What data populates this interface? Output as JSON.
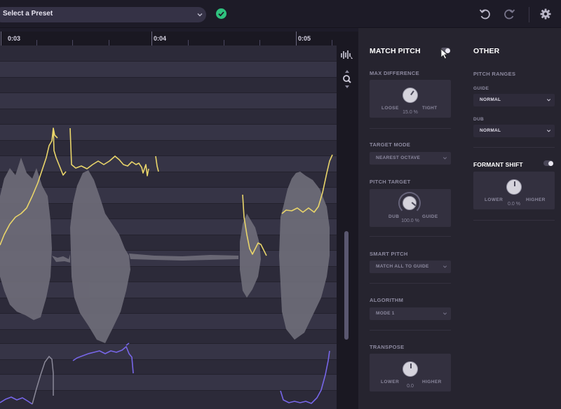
{
  "toolbar": {
    "preset_label": "Select a Preset",
    "icons": [
      "chevron-down-icon",
      "check-circle-icon",
      "undo-icon",
      "redo-icon",
      "gear-icon"
    ],
    "accent_color": "#2fc27e"
  },
  "timeline": {
    "ticks": [
      "0:03",
      "0:04",
      "0:05"
    ]
  },
  "tools": {
    "icons": [
      "waveform-select-icon",
      "zoom-icon"
    ]
  },
  "colors": {
    "guide_pitch": "#e9d56a",
    "dub_pitch": "#7766e8",
    "waveform": "#6e6c78"
  },
  "match_pitch": {
    "title": "MATCH PITCH",
    "max_difference": {
      "label": "MAX DIFFERENCE",
      "left": "LOOSE",
      "right": "TIGHT",
      "value": "15.0 %"
    },
    "target_mode": {
      "label": "TARGET MODE",
      "value": "NEAREST OCTAVE"
    },
    "pitch_target": {
      "label": "PITCH TARGET",
      "left": "DUB",
      "right": "GUIDE",
      "value": "100.0 %"
    },
    "smart_pitch": {
      "label": "SMART PITCH",
      "value": "MATCH ALL TO GUIDE"
    },
    "algorithm": {
      "label": "ALGORITHM",
      "value": "MODE 1"
    },
    "transpose": {
      "label": "TRANSPOSE",
      "left": "LOWER",
      "right": "HIGHER",
      "value": "0.0"
    }
  },
  "other": {
    "title": "OTHER",
    "pitch_ranges_label": "PITCH RANGES",
    "guide": {
      "label": "GUIDE",
      "value": "NORMAL"
    },
    "dub": {
      "label": "DUB",
      "value": "NORMAL"
    },
    "formant_shift": {
      "label": "FORMANT SHIFT",
      "left": "LOWER",
      "right": "HIGHER",
      "value": "0.0 %"
    }
  }
}
